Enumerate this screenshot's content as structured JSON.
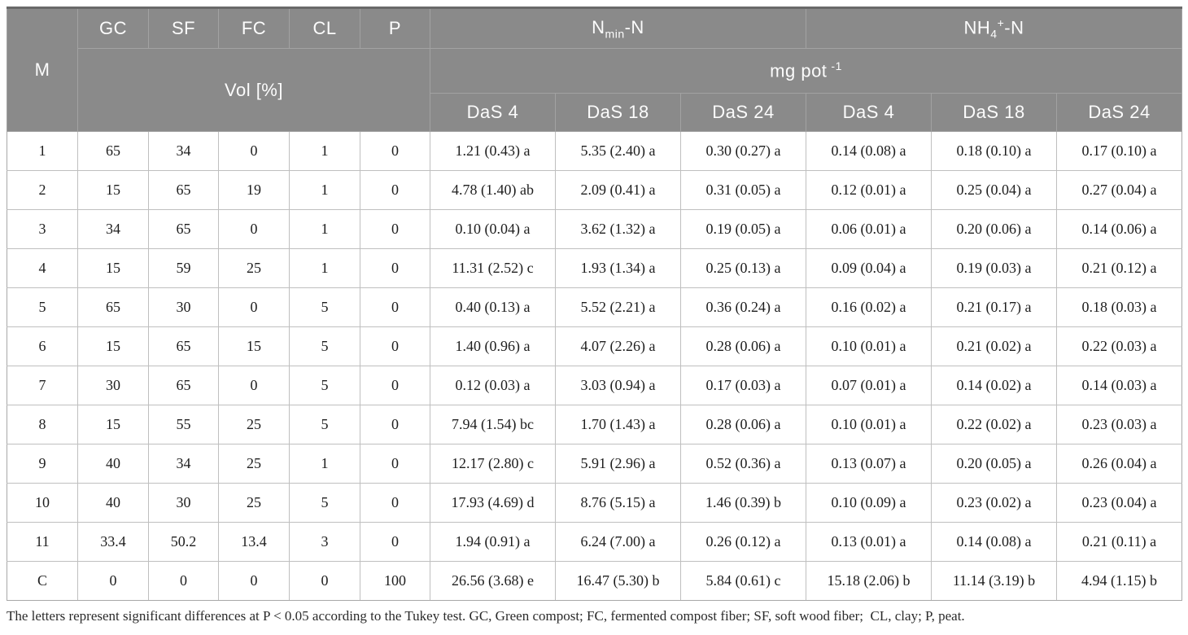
{
  "colors": {
    "header_bg": "#8a8a8a",
    "header_text": "#fcfcfc",
    "header_top_border": "#696969",
    "cell_border": "#bfbfbf",
    "body_text": "#1e1e1e"
  },
  "table": {
    "header": {
      "m_label": "M",
      "vol_columns": [
        "GC",
        "SF",
        "FC",
        "CL",
        "P"
      ],
      "vol_label": "Vol [%]",
      "nmin": {
        "pre": "N",
        "sub": "min",
        "post": "-N"
      },
      "nh4": {
        "pre": "NH",
        "sub": "4",
        "sup": "+",
        "post": "-N"
      },
      "unit": {
        "pre": "mg pot",
        "sup": "-1"
      },
      "das_columns": [
        "DaS 4",
        "DaS 18",
        "DaS 24",
        "DaS 4",
        "DaS 18",
        "DaS 24"
      ]
    },
    "rows": [
      {
        "cells": [
          "1",
          "65",
          "34",
          "0",
          "1",
          "0",
          "1.21 (0.43) a",
          "5.35 (2.40) a",
          "0.30 (0.27) a",
          "0.14 (0.08) a",
          "0.18 (0.10) a",
          "0.17 (0.10) a"
        ]
      },
      {
        "cells": [
          "2",
          "15",
          "65",
          "19",
          "1",
          "0",
          "4.78 (1.40) ab",
          "2.09 (0.41) a",
          "0.31 (0.05) a",
          "0.12 (0.01) a",
          "0.25 (0.04) a",
          "0.27 (0.04) a"
        ]
      },
      {
        "cells": [
          "3",
          "34",
          "65",
          "0",
          "1",
          "0",
          "0.10 (0.04) a",
          "3.62 (1.32) a",
          "0.19 (0.05) a",
          "0.06 (0.01) a",
          "0.20 (0.06) a",
          "0.14 (0.06) a"
        ]
      },
      {
        "cells": [
          "4",
          "15",
          "59",
          "25",
          "1",
          "0",
          "11.31 (2.52) c",
          "1.93 (1.34) a",
          "0.25 (0.13) a",
          "0.09 (0.04) a",
          "0.19 (0.03) a",
          "0.21 (0.12) a"
        ]
      },
      {
        "cells": [
          "5",
          "65",
          "30",
          "0",
          "5",
          "0",
          "0.40 (0.13) a",
          "5.52 (2.21) a",
          "0.36 (0.24) a",
          "0.16 (0.02) a",
          "0.21 (0.17) a",
          "0.18 (0.03) a"
        ]
      },
      {
        "cells": [
          "6",
          "15",
          "65",
          "15",
          "5",
          "0",
          "1.40 (0.96) a",
          "4.07 (2.26) a",
          "0.28 (0.06) a",
          "0.10 (0.01) a",
          "0.21 (0.02) a",
          "0.22 (0.03) a"
        ]
      },
      {
        "cells": [
          "7",
          "30",
          "65",
          "0",
          "5",
          "0",
          "0.12 (0.03) a",
          "3.03 (0.94) a",
          "0.17 (0.03) a",
          "0.07 (0.01) a",
          "0.14 (0.02) a",
          "0.14 (0.03) a"
        ]
      },
      {
        "cells": [
          "8",
          "15",
          "55",
          "25",
          "5",
          "0",
          "7.94 (1.54) bc",
          "1.70 (1.43) a",
          "0.28 (0.06) a",
          "0.10 (0.01) a",
          "0.22 (0.02) a",
          "0.23 (0.03) a"
        ]
      },
      {
        "cells": [
          "9",
          "40",
          "34",
          "25",
          "1",
          "0",
          "12.17 (2.80) c",
          "5.91 (2.96) a",
          "0.52 (0.36) a",
          "0.13 (0.07) a",
          "0.20 (0.05) a",
          "0.26 (0.04) a"
        ]
      },
      {
        "cells": [
          "10",
          "40",
          "30",
          "25",
          "5",
          "0",
          "17.93 (4.69) d",
          "8.76 (5.15) a",
          "1.46 (0.39) b",
          "0.10 (0.09) a",
          "0.23 (0.02) a",
          "0.23 (0.04) a"
        ]
      },
      {
        "cells": [
          "11",
          "33.4",
          "50.2",
          "13.4",
          "3",
          "0",
          "1.94 (0.91) a",
          "6.24 (7.00) a",
          "0.26 (0.12) a",
          "0.13 (0.01) a",
          "0.14 (0.08) a",
          "0.21 (0.11) a"
        ]
      },
      {
        "cells": [
          "C",
          "0",
          "0",
          "0",
          "0",
          "100",
          "26.56 (3.68) e",
          "16.47 (5.30) b",
          "5.84 (0.61) c",
          "15.18 (2.06) b",
          "11.14 (3.19) b",
          "4.94 (1.15) b"
        ]
      }
    ],
    "footnote": "The letters represent significant differences at P < 0.05 according to the Tukey test. GC, Green compost; FC, fermented compost fiber; SF, soft wood fiber;  CL, clay; P, peat."
  }
}
